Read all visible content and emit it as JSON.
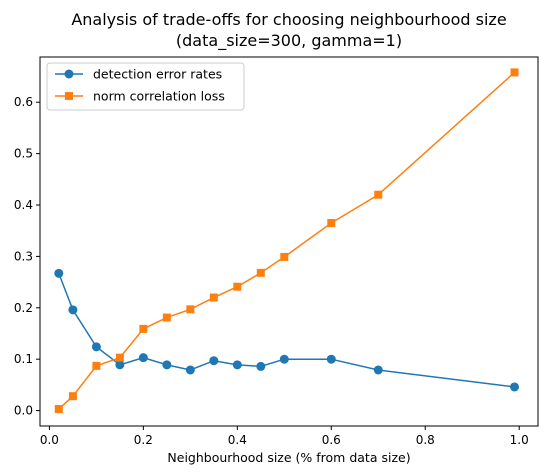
{
  "chart_data": {
    "type": "line",
    "title_line1": "Analysis of trade-offs for choosing neighbourhood size",
    "title_line2": "(data_size=300, gamma=1)",
    "xlabel": "Neighbourhood size (% from data size)",
    "ylabel": "",
    "xlim": [
      -0.02,
      1.04
    ],
    "ylim": [
      -0.03,
      0.688
    ],
    "xticks": [
      0.0,
      0.2,
      0.4,
      0.6,
      0.8,
      1.0
    ],
    "xtick_labels": [
      "0.0",
      "0.2",
      "0.4",
      "0.6",
      "0.8",
      "1.0"
    ],
    "yticks": [
      0.0,
      0.1,
      0.2,
      0.3,
      0.4,
      0.5,
      0.6
    ],
    "ytick_labels": [
      "0.0",
      "0.1",
      "0.2",
      "0.3",
      "0.4",
      "0.5",
      "0.6"
    ],
    "grid": false,
    "legend_position": "top-left",
    "x": [
      0.02,
      0.05,
      0.1,
      0.15,
      0.2,
      0.25,
      0.3,
      0.35,
      0.4,
      0.45,
      0.5,
      0.6,
      0.7,
      0.99
    ],
    "series": [
      {
        "name": "detection error rates",
        "color": "#1f77b4",
        "marker": "circle",
        "values": [
          0.267,
          0.196,
          0.124,
          0.089,
          0.103,
          0.089,
          0.079,
          0.097,
          0.089,
          0.086,
          0.1,
          0.1,
          0.079,
          0.046
        ]
      },
      {
        "name": "norm correlation loss",
        "color": "#ff7f0e",
        "marker": "square",
        "values": [
          0.003,
          0.028,
          0.087,
          0.103,
          0.159,
          0.181,
          0.197,
          0.22,
          0.241,
          0.268,
          0.299,
          0.365,
          0.42,
          0.658
        ]
      }
    ]
  }
}
